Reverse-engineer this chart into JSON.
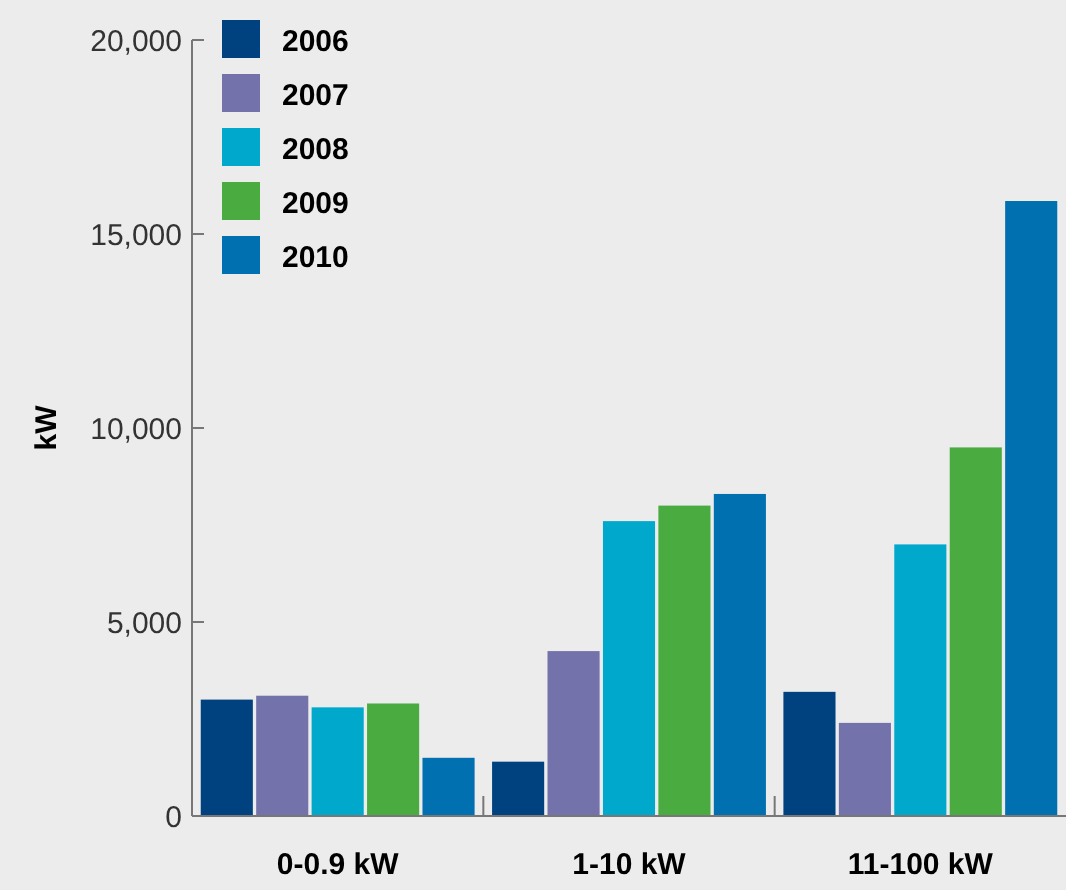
{
  "chart_data": {
    "type": "bar",
    "ylabel": "kW",
    "categories": [
      "0-0.9 kW",
      "1-10 kW",
      "11-100 kW"
    ],
    "series": [
      {
        "name": "2006",
        "color": "#00427f",
        "values": [
          3000,
          1400,
          3200
        ]
      },
      {
        "name": "2007",
        "color": "#7472aa",
        "values": [
          3100,
          4250,
          2400
        ]
      },
      {
        "name": "2008",
        "color": "#00a9cc",
        "values": [
          2800,
          7600,
          7000
        ]
      },
      {
        "name": "2009",
        "color": "#4aac40",
        "values": [
          2900,
          8000,
          9500
        ]
      },
      {
        "name": "2010",
        "color": "#0070b0",
        "values": [
          1500,
          8300,
          15850
        ]
      }
    ],
    "ylim": [
      0,
      20000
    ],
    "yticks": [
      {
        "value": 0,
        "label": "0"
      },
      {
        "value": 5000,
        "label": "5,000"
      },
      {
        "value": 10000,
        "label": "10,000"
      },
      {
        "value": 15000,
        "label": "15,000"
      },
      {
        "value": 20000,
        "label": "20,000"
      }
    ],
    "grid": false,
    "legend": "top left"
  }
}
